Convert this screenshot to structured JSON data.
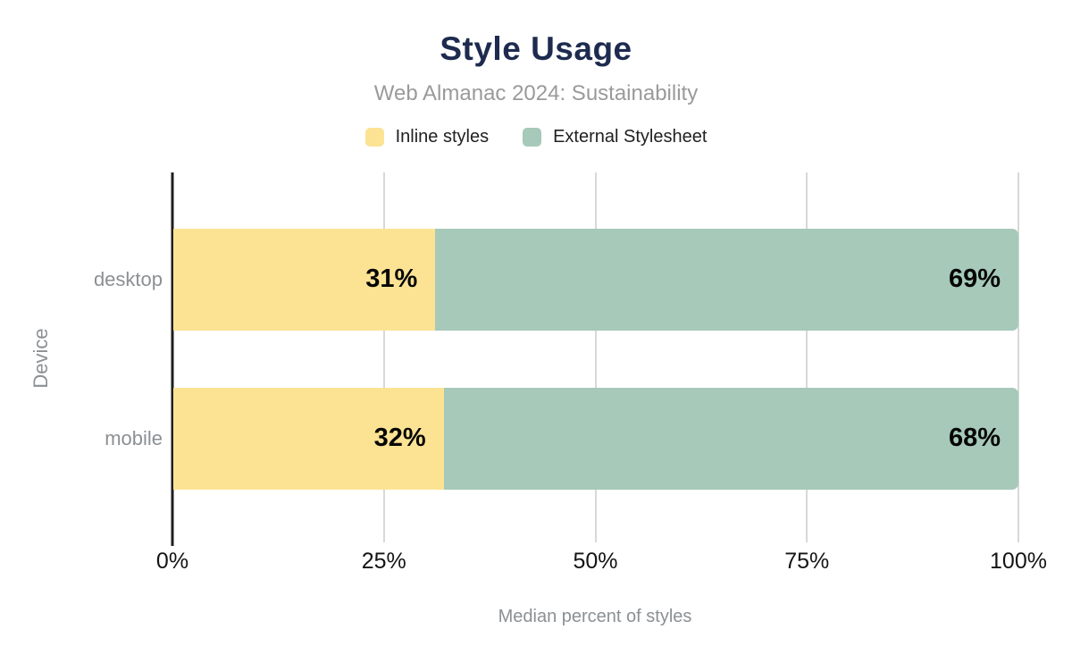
{
  "chart_data": {
    "type": "bar",
    "orientation": "horizontal",
    "stacked": true,
    "title": "Style Usage",
    "subtitle": "Web Almanac 2024: Sustainability",
    "categories": [
      "desktop",
      "mobile"
    ],
    "series": [
      {
        "name": "Inline styles",
        "color": "#fce394",
        "values": [
          31,
          32
        ]
      },
      {
        "name": "External Stylesheet",
        "color": "#a6c9b9",
        "values": [
          69,
          68
        ]
      }
    ],
    "value_labels": [
      [
        "31%",
        "69%"
      ],
      [
        "32%",
        "68%"
      ]
    ],
    "xlabel": "Median percent of styles",
    "ylabel": "Device",
    "x_ticks": [
      "0%",
      "25%",
      "50%",
      "75%",
      "100%"
    ],
    "xlim": [
      0,
      100
    ],
    "grid": true,
    "legend_position": "top"
  },
  "colors": {
    "title": "#1e2b4f",
    "subtitle": "#9a9a9a",
    "axis_text": "#8b9094",
    "tick_text": "#141414",
    "gridline": "#d8d8d8",
    "axis_line": "#1f1f1f",
    "background": "#ffffff"
  }
}
